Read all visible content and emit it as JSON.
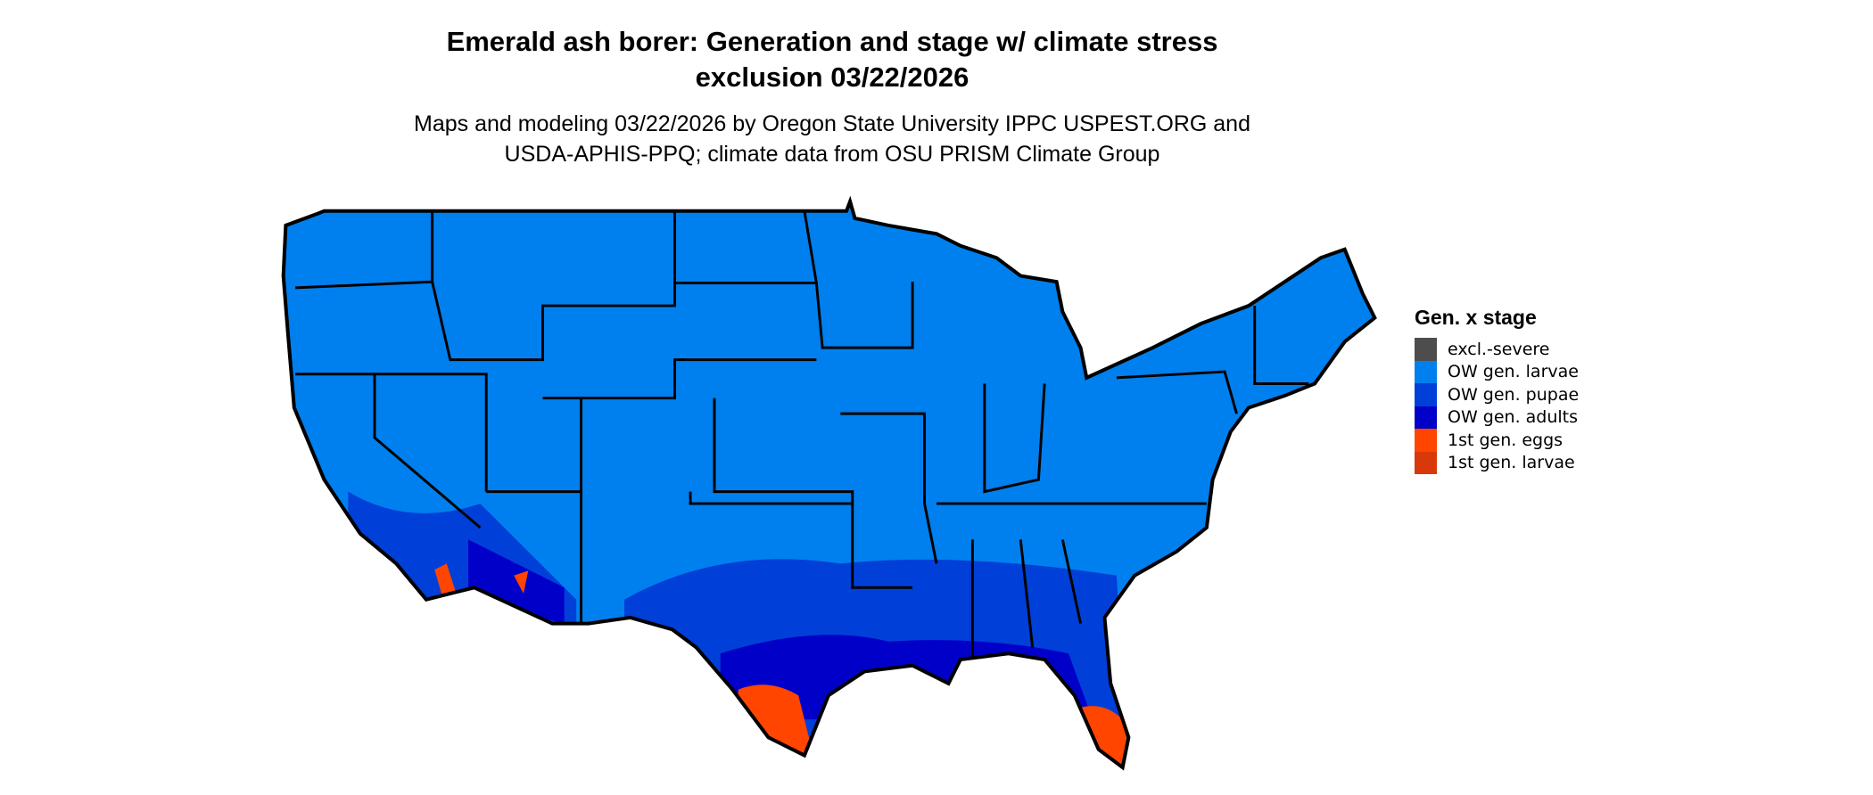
{
  "title": {
    "line1": "Emerald ash borer: Generation and stage w/ climate stress",
    "line2": "exclusion 03/22/2026"
  },
  "subtitle": {
    "line1": "Maps and modeling 03/22/2026 by Oregon State University IPPC USPEST.ORG and",
    "line2": "USDA-APHIS-PPQ; climate data from OSU PRISM Climate Group"
  },
  "legend": {
    "title": "Gen. x stage",
    "items": [
      {
        "label": "excl.-severe",
        "color": "#4d4d4d"
      },
      {
        "label": "OW gen. larvae",
        "color": "#0080ee"
      },
      {
        "label": "OW gen. pupae",
        "color": "#0040d8"
      },
      {
        "label": "OW gen. adults",
        "color": "#0000c8"
      },
      {
        "label": "1st gen. eggs",
        "color": "#ff4500"
      },
      {
        "label": "1st gen. larvae",
        "color": "#d8380a"
      }
    ]
  }
}
